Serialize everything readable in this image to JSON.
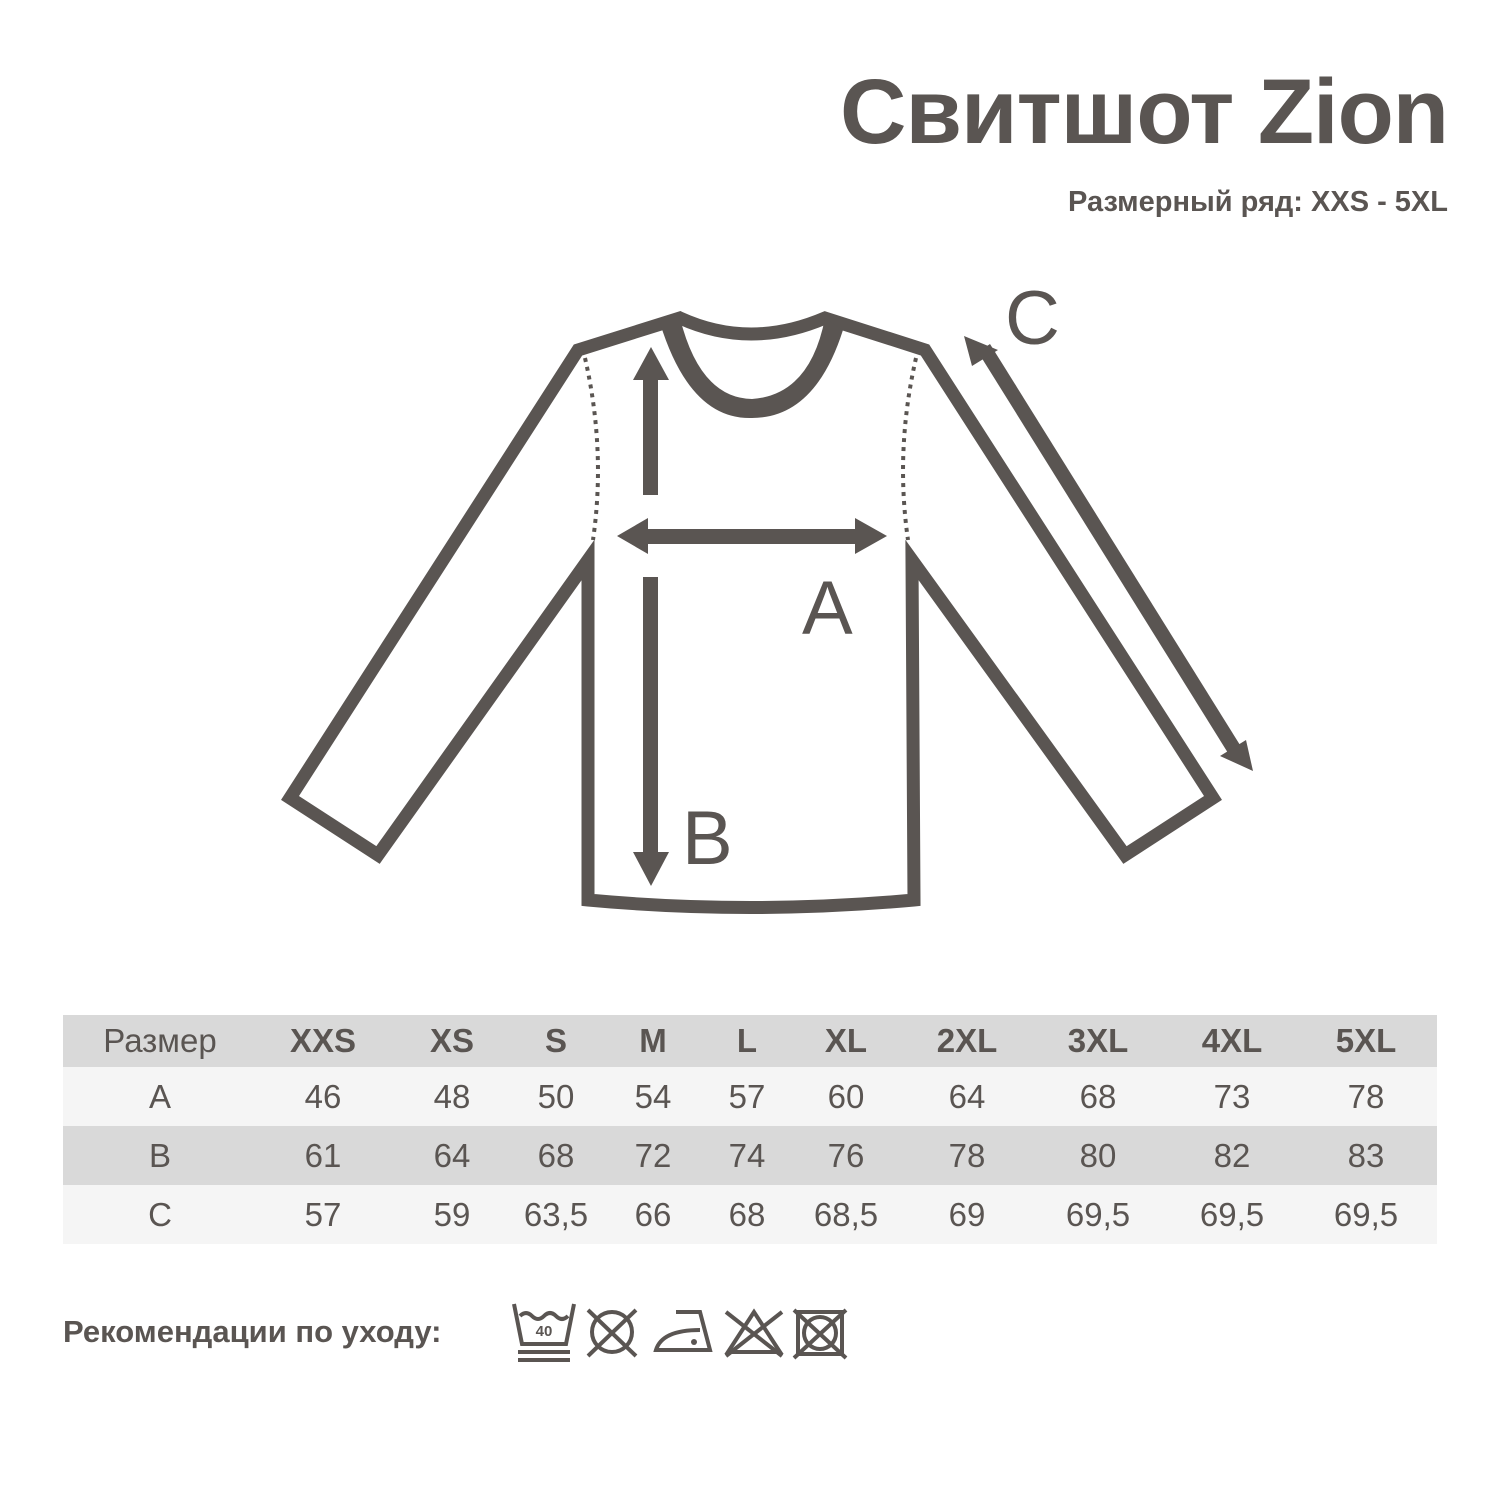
{
  "header": {
    "title": "Свитшот Zion",
    "size_range": "Размерный ряд: XXS - 5XL"
  },
  "diagram": {
    "labels": {
      "a": "A",
      "b": "B",
      "c": "C"
    }
  },
  "size_table": {
    "header": [
      "Размер",
      "XXS",
      "XS",
      "S",
      "M",
      "L",
      "XL",
      "2XL",
      "3XL",
      "4XL",
      "5XL"
    ],
    "rows": [
      [
        "A",
        "46",
        "48",
        "50",
        "54",
        "57",
        "60",
        "64",
        "68",
        "73",
        "78"
      ],
      [
        "B",
        "61",
        "64",
        "68",
        "72",
        "74",
        "76",
        "78",
        "80",
        "82",
        "83"
      ],
      [
        "C",
        "57",
        "59",
        "63,5",
        "66",
        "68",
        "68,5",
        "69",
        "69,5",
        "69,5",
        "69,5"
      ]
    ]
  },
  "care": {
    "label": "Рекомендации по уходу:",
    "wash_temp": "40",
    "icons": [
      "wash-40-gentle-icon",
      "do-not-tumble-dry-icon",
      "iron-low-icon",
      "do-not-bleach-icon",
      "do-not-dry-clean-icon"
    ]
  },
  "colors": {
    "ink": "#5a5552",
    "header_row": "#d9d9d9",
    "light_row": "#f5f5f5"
  }
}
